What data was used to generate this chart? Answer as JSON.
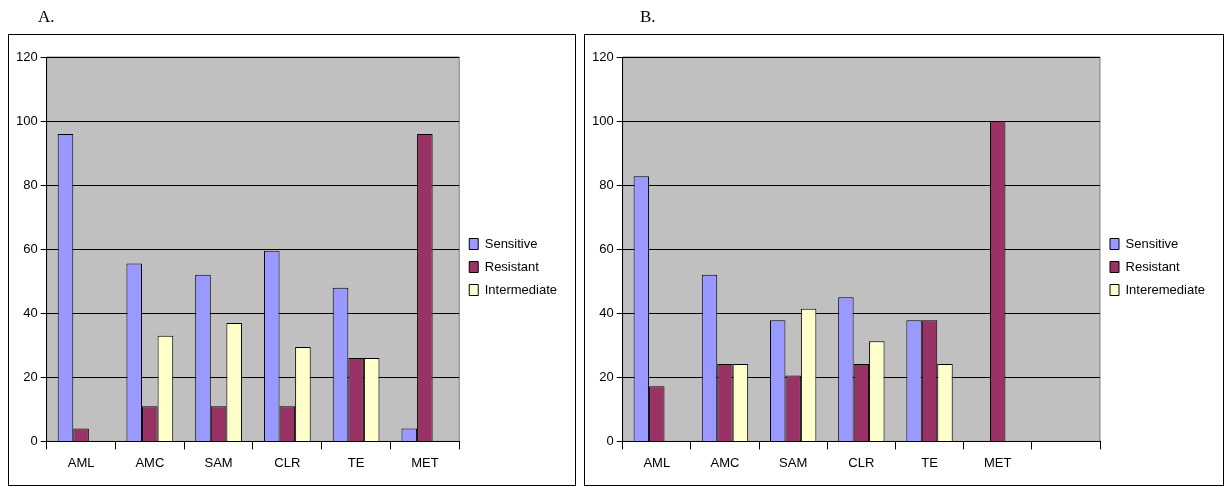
{
  "chart_data": [
    {
      "type": "bar",
      "title": "A.",
      "categories": [
        "AML",
        "AMC",
        "SAM",
        "CLR",
        "TE",
        "MET"
      ],
      "series": [
        {
          "name": "Sensitive",
          "color": "#9999ff",
          "values": [
            96,
            55.5,
            52,
            59.5,
            48,
            4
          ]
        },
        {
          "name": "Resistant",
          "color": "#993366",
          "values": [
            4,
            11,
            11,
            11,
            26,
            96
          ]
        },
        {
          "name": "Intermediate",
          "color": "#ffffcc",
          "values": [
            0,
            33,
            37,
            29.5,
            26,
            0
          ]
        }
      ],
      "ylim": [
        0,
        120
      ],
      "yticks": [
        0,
        20,
        40,
        60,
        80,
        100,
        120
      ],
      "grid": "y",
      "legend": "right"
    },
    {
      "type": "bar",
      "title": "B.",
      "categories": [
        "AML",
        "AMC",
        "SAM",
        "CLR",
        "TE",
        "MET",
        null
      ],
      "series": [
        {
          "name": "Sensitive",
          "color": "#9999ff",
          "values": [
            82.8,
            52,
            37.8,
            45,
            37.8,
            0,
            null
          ]
        },
        {
          "name": "Resistant",
          "color": "#993366",
          "values": [
            17.2,
            24.2,
            20.6,
            24.2,
            37.8,
            100,
            null
          ]
        },
        {
          "name": "Interemediate",
          "color": "#ffffcc",
          "values": [
            0,
            24.2,
            41.4,
            31.3,
            24.2,
            0,
            null
          ]
        }
      ],
      "ylim": [
        0,
        120
      ],
      "yticks": [
        0,
        20,
        40,
        60,
        80,
        100,
        120
      ],
      "grid": "y",
      "legend": "right"
    }
  ]
}
